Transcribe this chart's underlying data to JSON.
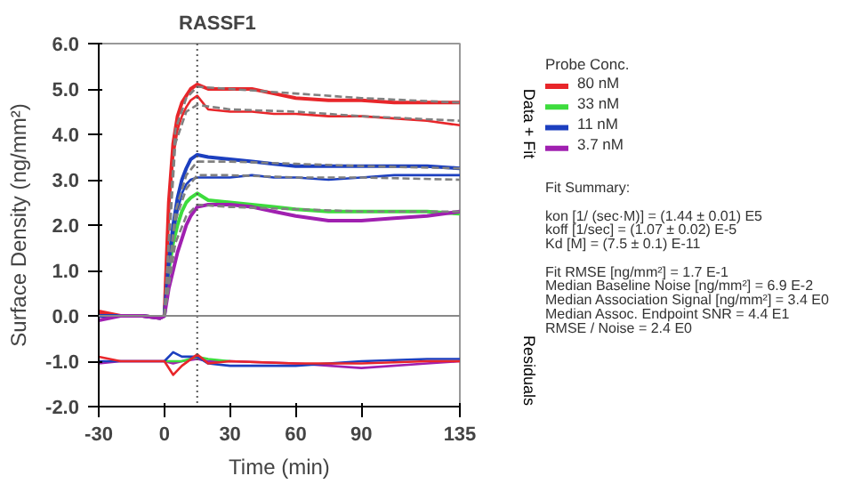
{
  "chart_data": {
    "type": "line",
    "title": "RASSF1",
    "xlabel": "Time (min)",
    "ylabel": "Surface Density (ng/mm²)",
    "legend_title": "Probe Conc.",
    "xlim": [
      -30,
      135
    ],
    "xticks": [
      -30,
      0,
      30,
      60,
      90,
      135
    ],
    "ylim": [
      -2,
      6
    ],
    "yticks": [
      {
        "value": -2,
        "label": "-2.0"
      },
      {
        "value": -1,
        "label": "-1.0"
      },
      {
        "value": 0,
        "label": "0.0"
      },
      {
        "value": 1,
        "label": "1.0"
      },
      {
        "value": 2,
        "label": "2.0"
      },
      {
        "value": 3,
        "label": "3.0"
      },
      {
        "value": 4,
        "label": "4.0"
      },
      {
        "value": 5,
        "label": "5.0"
      },
      {
        "value": 6,
        "label": "6.0"
      }
    ],
    "grid": false,
    "legend": "right",
    "marker": "none",
    "line_style": "solid",
    "ref_lines": [
      {
        "axis": "x",
        "value": 15,
        "label": null,
        "color": "#555555",
        "line_style": "dotted"
      },
      {
        "axis": "y",
        "value": 0,
        "label": null,
        "color": "#888888",
        "line_style": "solid"
      }
    ],
    "annotations": [
      "Data + Fit",
      "Residuals",
      "Fit Summary:",
      "kon  [1/ (sec·M)]  =   (1.44 ± 0.01) E5",
      "koff  [1/sec]  =   (1.07 ± 0.02) E-5",
      "Kd  [M]  =   (7.5 ± 0.1) E-11",
      "Fit RMSE [ng/mm²]  =   1.7 E-1",
      "Median Baseline Noise [ng/mm²]  =   6.9 E-2",
      "Median Association Signal [ng/mm²]  =   3.4 E0",
      "Median Assoc. Endpoint SNR  =   4.4 E1",
      "RMSE / Noise  =   2.4 E0"
    ],
    "series": [
      {
        "name": "80 nM",
        "color": "#e8262a",
        "x": [
          -30,
          -20,
          -10,
          -2,
          0,
          2,
          4,
          6,
          8,
          10,
          12,
          15,
          20,
          30,
          40,
          50,
          60,
          75,
          90,
          105,
          120,
          135
        ],
        "values": [
          0.1,
          0.0,
          0.0,
          -0.05,
          0.0,
          2.5,
          3.8,
          4.4,
          4.7,
          4.85,
          5.0,
          5.1,
          5.0,
          5.0,
          5.0,
          4.9,
          4.8,
          4.75,
          4.75,
          4.7,
          4.7,
          4.7
        ]
      },
      {
        "color": "#e8262a",
        "x": [
          -30,
          -20,
          -10,
          -2,
          0,
          2,
          4,
          6,
          8,
          10,
          12,
          15,
          20,
          30,
          40,
          50,
          60,
          75,
          90,
          105,
          120,
          135
        ],
        "values": [
          0.05,
          0.0,
          0.0,
          -0.05,
          0.0,
          2.3,
          3.5,
          4.1,
          4.4,
          4.6,
          4.75,
          4.85,
          4.55,
          4.5,
          4.5,
          4.45,
          4.45,
          4.4,
          4.4,
          4.35,
          4.3,
          4.2
        ]
      },
      {
        "name": "33 nM",
        "color": "#3ddc3d",
        "x": [
          0,
          2,
          4,
          6,
          8,
          10,
          12,
          15,
          20,
          30,
          40,
          50,
          60,
          75,
          90,
          105,
          120,
          135
        ],
        "values": [
          0.0,
          1.0,
          1.6,
          2.0,
          2.3,
          2.5,
          2.6,
          2.7,
          2.55,
          2.5,
          2.45,
          2.4,
          2.35,
          2.3,
          2.3,
          2.3,
          2.3,
          2.25
        ]
      },
      {
        "name": "11 nM",
        "color": "#1c3fbf",
        "x": [
          -30,
          -20,
          -10,
          -2,
          0,
          2,
          4,
          6,
          8,
          10,
          12,
          15,
          20,
          30,
          40,
          50,
          60,
          75,
          90,
          105,
          120,
          135
        ],
        "values": [
          0.0,
          0.0,
          0.0,
          -0.05,
          0.0,
          1.2,
          2.0,
          2.6,
          3.0,
          3.25,
          3.45,
          3.55,
          3.5,
          3.45,
          3.4,
          3.35,
          3.3,
          3.3,
          3.3,
          3.3,
          3.3,
          3.25
        ]
      },
      {
        "color": "#1c3fbf",
        "x": [
          -30,
          -20,
          -10,
          -2,
          0,
          2,
          4,
          6,
          8,
          10,
          12,
          15,
          20,
          30,
          40,
          50,
          60,
          75,
          90,
          105,
          120,
          135
        ],
        "values": [
          0.0,
          0.0,
          0.0,
          -0.05,
          0.0,
          1.1,
          1.8,
          2.3,
          2.7,
          2.9,
          3.0,
          3.05,
          3.05,
          3.05,
          3.1,
          3.05,
          3.05,
          3.0,
          3.05,
          3.1,
          3.1,
          3.1
        ]
      },
      {
        "name": "3.7 nM",
        "color": "#a020b0",
        "x": [
          -30,
          -20,
          -10,
          -2,
          0,
          2,
          4,
          6,
          8,
          10,
          12,
          15,
          20,
          30,
          40,
          50,
          60,
          75,
          90,
          105,
          120,
          135
        ],
        "values": [
          -0.1,
          0.0,
          0.0,
          -0.05,
          0.0,
          0.6,
          1.0,
          1.4,
          1.7,
          2.0,
          2.2,
          2.4,
          2.45,
          2.45,
          2.4,
          2.3,
          2.2,
          2.1,
          2.1,
          2.15,
          2.2,
          2.3
        ]
      },
      {
        "color": "#808080",
        "line_style": "dashed",
        "x": [
          0,
          5,
          10,
          15,
          30,
          60,
          90,
          135
        ],
        "values": [
          0,
          4.1,
          4.8,
          5.05,
          5.0,
          4.9,
          4.8,
          4.7
        ]
      },
      {
        "color": "#808080",
        "line_style": "dashed",
        "x": [
          0,
          5,
          10,
          15,
          30,
          60,
          90,
          135
        ],
        "values": [
          0,
          3.8,
          4.5,
          4.65,
          4.55,
          4.5,
          4.4,
          4.3
        ]
      },
      {
        "color": "#808080",
        "line_style": "dashed",
        "x": [
          0,
          5,
          10,
          15,
          30,
          60,
          90,
          135
        ],
        "values": [
          0,
          2.3,
          3.1,
          3.4,
          3.4,
          3.35,
          3.3,
          3.25
        ]
      },
      {
        "color": "#808080",
        "line_style": "dashed",
        "x": [
          0,
          5,
          10,
          15,
          30,
          60,
          90,
          135
        ],
        "values": [
          0,
          2.1,
          2.8,
          3.1,
          3.1,
          3.05,
          3.05,
          3.0
        ]
      },
      {
        "color": "#808080",
        "line_style": "dashed",
        "x": [
          0,
          5,
          10,
          15,
          30,
          60,
          90,
          135
        ],
        "values": [
          0,
          1.6,
          2.2,
          2.45,
          2.4,
          2.35,
          2.3,
          2.3
        ]
      },
      {
        "color": "#a020b0",
        "x": [
          -30,
          -20,
          -10,
          0,
          4,
          8,
          15,
          20,
          30,
          60,
          90,
          120,
          135
        ],
        "values": [
          -1.05,
          -1.0,
          -1.0,
          -1.0,
          -1.05,
          -1.0,
          -0.95,
          -1.0,
          -1.0,
          -1.05,
          -1.15,
          -1.05,
          -1.0
        ]
      },
      {
        "color": "#3ddc3d",
        "x": [
          0,
          4,
          8,
          15,
          20,
          30
        ],
        "values": [
          -1.0,
          -1.0,
          -1.0,
          -0.9,
          -0.95,
          -1.0
        ]
      },
      {
        "color": "#1c3fbf",
        "x": [
          -30,
          -20,
          -10,
          0,
          4,
          8,
          15,
          20,
          30,
          60,
          90,
          120,
          135
        ],
        "values": [
          -1.0,
          -1.0,
          -1.0,
          -1.0,
          -0.8,
          -0.9,
          -0.9,
          -1.05,
          -1.1,
          -1.1,
          -1.0,
          -0.95,
          -0.95
        ]
      },
      {
        "color": "#e8262a",
        "x": [
          -30,
          -20,
          -10,
          0,
          4,
          8,
          15,
          20,
          30,
          60,
          90,
          120,
          135
        ],
        "values": [
          -0.9,
          -1.0,
          -1.0,
          -1.0,
          -1.3,
          -1.1,
          -0.85,
          -1.05,
          -1.0,
          -1.05,
          -1.05,
          -1.0,
          -1.0
        ]
      }
    ]
  }
}
